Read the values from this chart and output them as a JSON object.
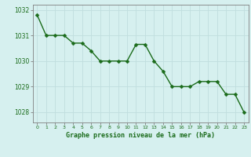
{
  "x": [
    0,
    1,
    2,
    3,
    4,
    5,
    6,
    7,
    8,
    9,
    10,
    11,
    12,
    13,
    14,
    15,
    16,
    17,
    18,
    19,
    20,
    21,
    22,
    23
  ],
  "y": [
    1031.8,
    1031.0,
    1031.0,
    1031.0,
    1030.7,
    1030.7,
    1030.4,
    1030.0,
    1030.0,
    1030.0,
    1030.0,
    1030.65,
    1030.65,
    1030.0,
    1029.6,
    1029.0,
    1029.0,
    1029.0,
    1029.2,
    1029.2,
    1029.2,
    1028.7,
    1028.7,
    1028.0
  ],
  "xlim": [
    -0.5,
    23.5
  ],
  "ylim": [
    1027.6,
    1032.2
  ],
  "yticks": [
    1028,
    1029,
    1030,
    1031,
    1032
  ],
  "xticks": [
    0,
    1,
    2,
    3,
    4,
    5,
    6,
    7,
    8,
    9,
    10,
    11,
    12,
    13,
    14,
    15,
    16,
    17,
    18,
    19,
    20,
    21,
    22,
    23
  ],
  "line_color": "#1a6b1a",
  "marker_color": "#1a6b1a",
  "bg_color": "#d6f0ef",
  "grid_color": "#c0dede",
  "axis_color": "#808080",
  "xlabel": "Graphe pression niveau de la mer (hPa)",
  "xlabel_color": "#1a6b1a",
  "tick_label_color": "#1a6b1a",
  "line_width": 1.0,
  "marker_size": 2.5
}
